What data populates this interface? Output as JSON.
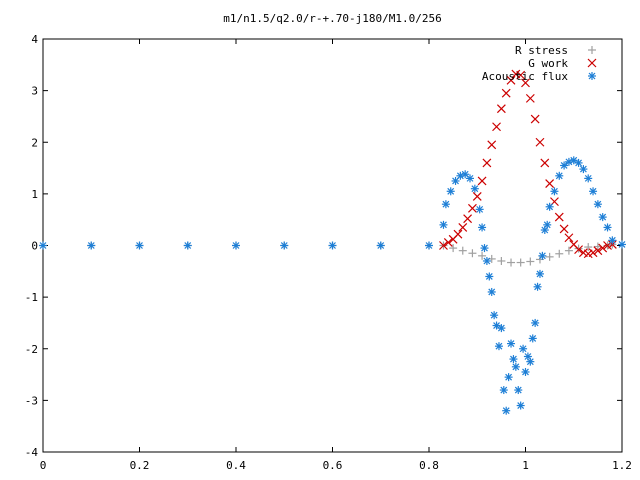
{
  "chart_data": {
    "type": "scatter",
    "title": "m1/n1.5/q2.0/r-+.70-j180/M1.0/256",
    "xlabel": "",
    "ylabel": "",
    "xlim": [
      0,
      1.2
    ],
    "ylim": [
      -4,
      4
    ],
    "x_ticks": [
      "0",
      "0.2",
      "0.4",
      "0.6",
      "0.8",
      "1",
      "1.2"
    ],
    "y_ticks": [
      "4",
      "3",
      "2",
      "1",
      "0",
      "-1",
      "-2",
      "-3",
      "-4"
    ],
    "grid": false,
    "legend_position": "top-right",
    "series": [
      {
        "name": "R stress",
        "marker": "plus",
        "color": "#a0a0a0",
        "points": [
          [
            0.0,
            0
          ],
          [
            0.1,
            0
          ],
          [
            0.2,
            0
          ],
          [
            0.3,
            0
          ],
          [
            0.4,
            0
          ],
          [
            0.5,
            0
          ],
          [
            0.6,
            0
          ],
          [
            0.7,
            0
          ],
          [
            0.8,
            0
          ],
          [
            0.83,
            0
          ],
          [
            0.85,
            -0.05
          ],
          [
            0.87,
            -0.1
          ],
          [
            0.89,
            -0.15
          ],
          [
            0.91,
            -0.2
          ],
          [
            0.93,
            -0.26
          ],
          [
            0.95,
            -0.3
          ],
          [
            0.97,
            -0.33
          ],
          [
            0.99,
            -0.33
          ],
          [
            1.01,
            -0.31
          ],
          [
            1.03,
            -0.27
          ],
          [
            1.05,
            -0.22
          ],
          [
            1.07,
            -0.16
          ],
          [
            1.09,
            -0.1
          ],
          [
            1.11,
            -0.06
          ],
          [
            1.13,
            -0.03
          ],
          [
            1.15,
            -0.02
          ],
          [
            1.17,
            0
          ],
          [
            1.18,
            0.02
          ]
        ]
      },
      {
        "name": "G work",
        "marker": "cross",
        "color": "#cc0000",
        "points": [
          [
            0.83,
            0.0
          ],
          [
            0.84,
            0.06
          ],
          [
            0.85,
            0.12
          ],
          [
            0.86,
            0.22
          ],
          [
            0.87,
            0.35
          ],
          [
            0.88,
            0.52
          ],
          [
            0.89,
            0.72
          ],
          [
            0.9,
            0.95
          ],
          [
            0.91,
            1.25
          ],
          [
            0.92,
            1.6
          ],
          [
            0.93,
            1.95
          ],
          [
            0.94,
            2.3
          ],
          [
            0.95,
            2.65
          ],
          [
            0.96,
            2.95
          ],
          [
            0.97,
            3.2
          ],
          [
            0.98,
            3.32
          ],
          [
            0.99,
            3.3
          ],
          [
            1.0,
            3.15
          ],
          [
            1.01,
            2.85
          ],
          [
            1.02,
            2.45
          ],
          [
            1.03,
            2.0
          ],
          [
            1.04,
            1.6
          ],
          [
            1.05,
            1.2
          ],
          [
            1.06,
            0.85
          ],
          [
            1.07,
            0.55
          ],
          [
            1.08,
            0.32
          ],
          [
            1.09,
            0.15
          ],
          [
            1.1,
            0.02
          ],
          [
            1.11,
            -0.08
          ],
          [
            1.12,
            -0.14
          ],
          [
            1.13,
            -0.16
          ],
          [
            1.14,
            -0.14
          ],
          [
            1.15,
            -0.1
          ],
          [
            1.16,
            -0.05
          ],
          [
            1.17,
            0.0
          ],
          [
            1.18,
            0.02
          ]
        ]
      },
      {
        "name": "Acoustic flux",
        "marker": "star",
        "color": "#1e7fd6",
        "points": [
          [
            0.0,
            0
          ],
          [
            0.1,
            0
          ],
          [
            0.2,
            0
          ],
          [
            0.3,
            0
          ],
          [
            0.4,
            0
          ],
          [
            0.5,
            0
          ],
          [
            0.6,
            0
          ],
          [
            0.7,
            0
          ],
          [
            0.8,
            0
          ],
          [
            0.83,
            0.4
          ],
          [
            0.835,
            0.8
          ],
          [
            0.845,
            1.05
          ],
          [
            0.855,
            1.25
          ],
          [
            0.865,
            1.35
          ],
          [
            0.875,
            1.38
          ],
          [
            0.885,
            1.3
          ],
          [
            0.895,
            1.1
          ],
          [
            0.905,
            0.7
          ],
          [
            0.91,
            0.35
          ],
          [
            0.915,
            -0.05
          ],
          [
            0.92,
            -0.3
          ],
          [
            0.925,
            -0.6
          ],
          [
            0.93,
            -0.9
          ],
          [
            0.935,
            -1.35
          ],
          [
            0.94,
            -1.55
          ],
          [
            0.945,
            -1.95
          ],
          [
            0.95,
            -1.6
          ],
          [
            0.955,
            -2.8
          ],
          [
            0.96,
            -3.2
          ],
          [
            0.965,
            -2.55
          ],
          [
            0.97,
            -1.9
          ],
          [
            0.975,
            -2.2
          ],
          [
            0.98,
            -2.35
          ],
          [
            0.985,
            -2.8
          ],
          [
            0.99,
            -3.1
          ],
          [
            0.995,
            -2.0
          ],
          [
            1.0,
            -2.45
          ],
          [
            1.005,
            -2.15
          ],
          [
            1.01,
            -2.25
          ],
          [
            1.015,
            -1.8
          ],
          [
            1.02,
            -1.5
          ],
          [
            1.025,
            -0.8
          ],
          [
            1.03,
            -0.55
          ],
          [
            1.035,
            -0.2
          ],
          [
            1.04,
            0.3
          ],
          [
            1.045,
            0.4
          ],
          [
            1.05,
            0.75
          ],
          [
            1.06,
            1.05
          ],
          [
            1.07,
            1.35
          ],
          [
            1.08,
            1.55
          ],
          [
            1.09,
            1.62
          ],
          [
            1.1,
            1.65
          ],
          [
            1.11,
            1.6
          ],
          [
            1.12,
            1.48
          ],
          [
            1.13,
            1.3
          ],
          [
            1.14,
            1.05
          ],
          [
            1.15,
            0.8
          ],
          [
            1.16,
            0.55
          ],
          [
            1.17,
            0.35
          ],
          [
            1.18,
            0.1
          ],
          [
            1.2,
            0.02
          ]
        ]
      }
    ]
  }
}
